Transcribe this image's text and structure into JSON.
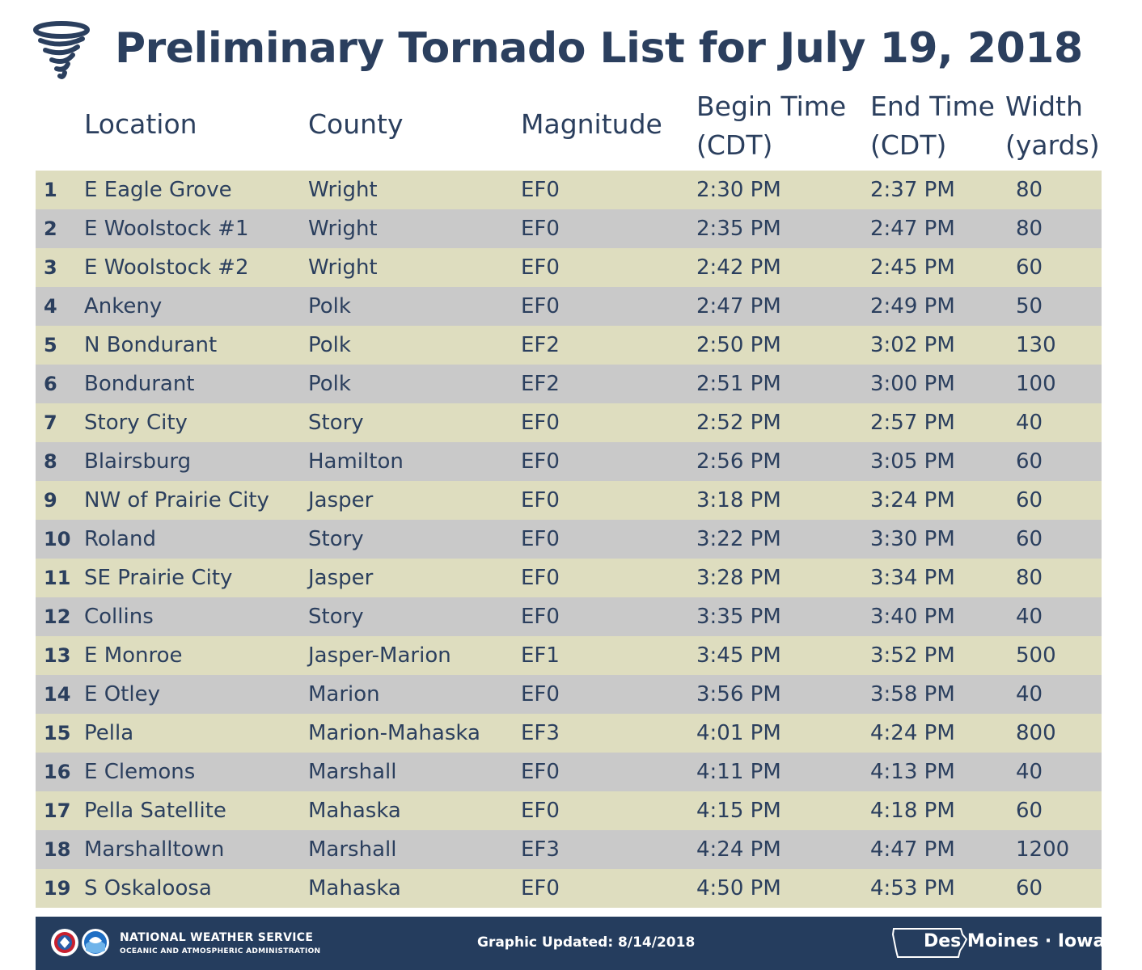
{
  "title": "Preliminary Tornado List for July 19, 2018",
  "icons": {
    "title_icon": "tornado-icon",
    "nws_logo": "nws-logo-icon",
    "noaa_logo": "noaa-logo-icon",
    "state_outline": "iowa-outline-icon"
  },
  "colors": {
    "text": "#2b3f5e",
    "row_odd": "#deddbf",
    "row_even": "#c9c9c9",
    "footer": "#253d5e"
  },
  "table": {
    "headers": {
      "location": "Location",
      "county": "County",
      "magnitude": "Magnitude",
      "begin_line1": "Begin Time",
      "begin_line2": "(CDT)",
      "end_line1": "End Time",
      "end_line2": "(CDT)",
      "width_line1": "Width",
      "width_line2": "(yards)"
    },
    "rows": [
      {
        "num": "1",
        "location": "E Eagle Grove",
        "county": "Wright",
        "magnitude": "EF0",
        "begin": "2:30 PM",
        "end": "2:37 PM",
        "width": "80"
      },
      {
        "num": "2",
        "location": "E Woolstock #1",
        "county": "Wright",
        "magnitude": "EF0",
        "begin": "2:35 PM",
        "end": "2:47 PM",
        "width": "80"
      },
      {
        "num": "3",
        "location": "E Woolstock #2",
        "county": "Wright",
        "magnitude": "EF0",
        "begin": "2:42 PM",
        "end": "2:45 PM",
        "width": "60"
      },
      {
        "num": "4",
        "location": "Ankeny",
        "county": "Polk",
        "magnitude": "EF0",
        "begin": "2:47 PM",
        "end": "2:49 PM",
        "width": "50"
      },
      {
        "num": "5",
        "location": "N Bondurant",
        "county": "Polk",
        "magnitude": "EF2",
        "begin": "2:50 PM",
        "end": "3:02 PM",
        "width": "130"
      },
      {
        "num": "6",
        "location": "Bondurant",
        "county": "Polk",
        "magnitude": "EF2",
        "begin": "2:51 PM",
        "end": "3:00 PM",
        "width": "100"
      },
      {
        "num": "7",
        "location": "Story City",
        "county": "Story",
        "magnitude": "EF0",
        "begin": "2:52 PM",
        "end": "2:57 PM",
        "width": "40"
      },
      {
        "num": "8",
        "location": "Blairsburg",
        "county": "Hamilton",
        "magnitude": "EF0",
        "begin": "2:56 PM",
        "end": "3:05 PM",
        "width": "60"
      },
      {
        "num": "9",
        "location": "NW of Prairie City",
        "county": "Jasper",
        "magnitude": "EF0",
        "begin": "3:18 PM",
        "end": "3:24 PM",
        "width": "60"
      },
      {
        "num": "10",
        "location": "Roland",
        "county": "Story",
        "magnitude": "EF0",
        "begin": "3:22 PM",
        "end": "3:30 PM",
        "width": "60"
      },
      {
        "num": "11",
        "location": "SE Prairie City",
        "county": "Jasper",
        "magnitude": "EF0",
        "begin": "3:28 PM",
        "end": "3:34 PM",
        "width": "80"
      },
      {
        "num": "12",
        "location": "Collins",
        "county": "Story",
        "magnitude": "EF0",
        "begin": "3:35 PM",
        "end": "3:40 PM",
        "width": "40"
      },
      {
        "num": "13",
        "location": "E Monroe",
        "county": "Jasper-Marion",
        "magnitude": "EF1",
        "begin": "3:45 PM",
        "end": "3:52 PM",
        "width": "500"
      },
      {
        "num": "14",
        "location": "E Otley",
        "county": "Marion",
        "magnitude": "EF0",
        "begin": "3:56 PM",
        "end": "3:58 PM",
        "width": "40"
      },
      {
        "num": "15",
        "location": "Pella",
        "county": "Marion-Mahaska",
        "magnitude": "EF3",
        "begin": "4:01 PM",
        "end": "4:24 PM",
        "width": "800"
      },
      {
        "num": "16",
        "location": "E Clemons",
        "county": "Marshall",
        "magnitude": "EF0",
        "begin": "4:11 PM",
        "end": "4:13 PM",
        "width": "40"
      },
      {
        "num": "17",
        "location": "Pella Satellite",
        "county": "Mahaska",
        "magnitude": "EF0",
        "begin": "4:15 PM",
        "end": "4:18 PM",
        "width": "60"
      },
      {
        "num": "18",
        "location": "Marshalltown",
        "county": "Marshall",
        "magnitude": "EF3",
        "begin": "4:24 PM",
        "end": "4:47 PM",
        "width": "1200"
      },
      {
        "num": "19",
        "location": "S Oskaloosa",
        "county": "Mahaska",
        "magnitude": "EF0",
        "begin": "4:50 PM",
        "end": "4:53 PM",
        "width": "60"
      }
    ]
  },
  "footer": {
    "agency": "NATIONAL WEATHER SERVICE",
    "parent_agency": "OCEANIC AND ATMOSPHERIC ADMINISTRATION",
    "updated": "Graphic Updated: 8/14/2018",
    "office": "Des Moines · Iowa"
  }
}
